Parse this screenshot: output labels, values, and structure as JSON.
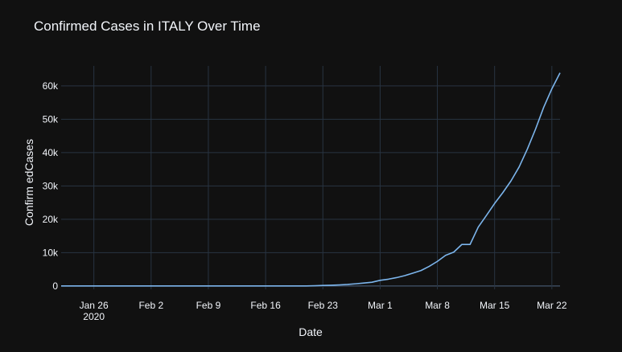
{
  "chart_data": {
    "type": "line",
    "title": "Confirmed Cases in ITALY Over Time",
    "xlabel": "Date",
    "ylabel": "Confirm edCases",
    "ylim": [
      -1000,
      66000
    ],
    "xlim": [
      "2020-01-22",
      "2020-03-23"
    ],
    "grid": true,
    "line_color": "#7cb5ec",
    "background": "#111111",
    "x_ticks": [
      {
        "date": "2020-01-26",
        "label": "Jan 26",
        "sublabel": "2020"
      },
      {
        "date": "2020-02-02",
        "label": "Feb 2",
        "sublabel": ""
      },
      {
        "date": "2020-02-09",
        "label": "Feb 9",
        "sublabel": ""
      },
      {
        "date": "2020-02-16",
        "label": "Feb 16",
        "sublabel": ""
      },
      {
        "date": "2020-02-23",
        "label": "Feb 23",
        "sublabel": ""
      },
      {
        "date": "2020-03-01",
        "label": "Mar 1",
        "sublabel": ""
      },
      {
        "date": "2020-03-08",
        "label": "Mar 8",
        "sublabel": ""
      },
      {
        "date": "2020-03-15",
        "label": "Mar 15",
        "sublabel": ""
      },
      {
        "date": "2020-03-22",
        "label": "Mar 22",
        "sublabel": ""
      }
    ],
    "y_ticks": [
      {
        "value": 0,
        "label": "0"
      },
      {
        "value": 10000,
        "label": "10k"
      },
      {
        "value": 20000,
        "label": "20k"
      },
      {
        "value": 30000,
        "label": "30k"
      },
      {
        "value": 40000,
        "label": "40k"
      },
      {
        "value": 50000,
        "label": "50k"
      },
      {
        "value": 60000,
        "label": "60k"
      }
    ],
    "series": [
      {
        "x": [
          "2020-01-22",
          "2020-01-23",
          "2020-01-24",
          "2020-01-25",
          "2020-01-26",
          "2020-01-27",
          "2020-01-28",
          "2020-01-29",
          "2020-01-30",
          "2020-01-31",
          "2020-02-01",
          "2020-02-02",
          "2020-02-03",
          "2020-02-04",
          "2020-02-05",
          "2020-02-06",
          "2020-02-07",
          "2020-02-08",
          "2020-02-09",
          "2020-02-10",
          "2020-02-11",
          "2020-02-12",
          "2020-02-13",
          "2020-02-14",
          "2020-02-15",
          "2020-02-16",
          "2020-02-17",
          "2020-02-18",
          "2020-02-19",
          "2020-02-20",
          "2020-02-21",
          "2020-02-22",
          "2020-02-23",
          "2020-02-24",
          "2020-02-25",
          "2020-02-26",
          "2020-02-27",
          "2020-02-28",
          "2020-02-29",
          "2020-03-01",
          "2020-03-02",
          "2020-03-03",
          "2020-03-04",
          "2020-03-05",
          "2020-03-06",
          "2020-03-07",
          "2020-03-08",
          "2020-03-09",
          "2020-03-10",
          "2020-03-11",
          "2020-03-12",
          "2020-03-13",
          "2020-03-14",
          "2020-03-15",
          "2020-03-16",
          "2020-03-17",
          "2020-03-18",
          "2020-03-19",
          "2020-03-20",
          "2020-03-21",
          "2020-03-22",
          "2020-03-23"
        ],
        "y": [
          0,
          0,
          0,
          0,
          0,
          0,
          0,
          0,
          0,
          2,
          2,
          2,
          2,
          2,
          2,
          2,
          3,
          3,
          3,
          3,
          3,
          3,
          3,
          3,
          3,
          3,
          3,
          3,
          3,
          3,
          20,
          62,
          155,
          229,
          322,
          453,
          655,
          888,
          1128,
          1694,
          2036,
          2502,
          3089,
          3858,
          4636,
          5883,
          7375,
          9172,
          10149,
          12462,
          12462,
          17660,
          21157,
          24747,
          27980,
          31506,
          35713,
          41035,
          47021,
          53578,
          59138,
          63927
        ]
      }
    ]
  }
}
